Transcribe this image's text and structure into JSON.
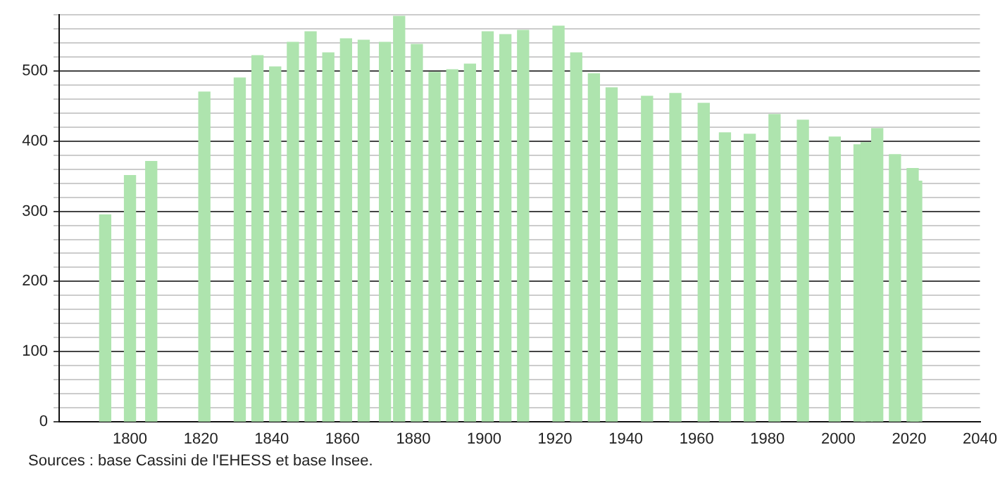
{
  "chart_data": {
    "type": "bar",
    "color": "#aee4ae",
    "x": [
      1793,
      1800,
      1806,
      1821,
      1831,
      1836,
      1841,
      1846,
      1851,
      1856,
      1861,
      1866,
      1872,
      1876,
      1881,
      1886,
      1891,
      1896,
      1901,
      1906,
      1911,
      1921,
      1926,
      1931,
      1936,
      1946,
      1954,
      1962,
      1968,
      1975,
      1982,
      1990,
      1999,
      2006,
      2008,
      2011,
      2016,
      2021,
      2022
    ],
    "values": [
      295,
      351,
      371,
      470,
      490,
      522,
      506,
      541,
      556,
      526,
      546,
      544,
      541,
      578,
      538,
      498,
      502,
      510,
      556,
      552,
      558,
      564,
      526,
      496,
      476,
      464,
      468,
      454,
      412,
      410,
      438,
      430,
      406,
      395,
      398,
      418,
      381,
      361,
      343
    ],
    "xlim": [
      1780,
      2040
    ],
    "xticks": [
      1800,
      1820,
      1840,
      1860,
      1880,
      1900,
      1920,
      1940,
      1960,
      1980,
      2000,
      2020,
      2040
    ],
    "ylim": [
      0,
      580
    ],
    "yticks": [
      0,
      {
        "value": 20,
        "label": null
      },
      {
        "value": 40,
        "label": null
      },
      {
        "value": 60,
        "label": null
      },
      {
        "value": 80,
        "label": null
      },
      100,
      {
        "value": 120,
        "label": null
      },
      {
        "value": 140,
        "label": null
      },
      {
        "value": 160,
        "label": null
      },
      {
        "value": 180,
        "label": null
      },
      200,
      {
        "value": 220,
        "label": null
      },
      {
        "value": 240,
        "label": null
      },
      {
        "value": 260,
        "label": null
      },
      {
        "value": 280,
        "label": null
      },
      300,
      {
        "value": 320,
        "label": null
      },
      {
        "value": 340,
        "label": null
      },
      {
        "value": 360,
        "label": null
      },
      {
        "value": 380,
        "label": null
      },
      400,
      {
        "value": 420,
        "label": null
      },
      {
        "value": 440,
        "label": null
      },
      {
        "value": 460,
        "label": null
      },
      {
        "value": 480,
        "label": null
      },
      500,
      {
        "value": 520,
        "label": null
      },
      {
        "value": 540,
        "label": null
      },
      {
        "value": 560,
        "label": null
      },
      {
        "value": 580,
        "label": null
      }
    ],
    "grid": "y",
    "annotations": [
      "Sources : base Cassini de l'EHESS et base Insee."
    ]
  }
}
